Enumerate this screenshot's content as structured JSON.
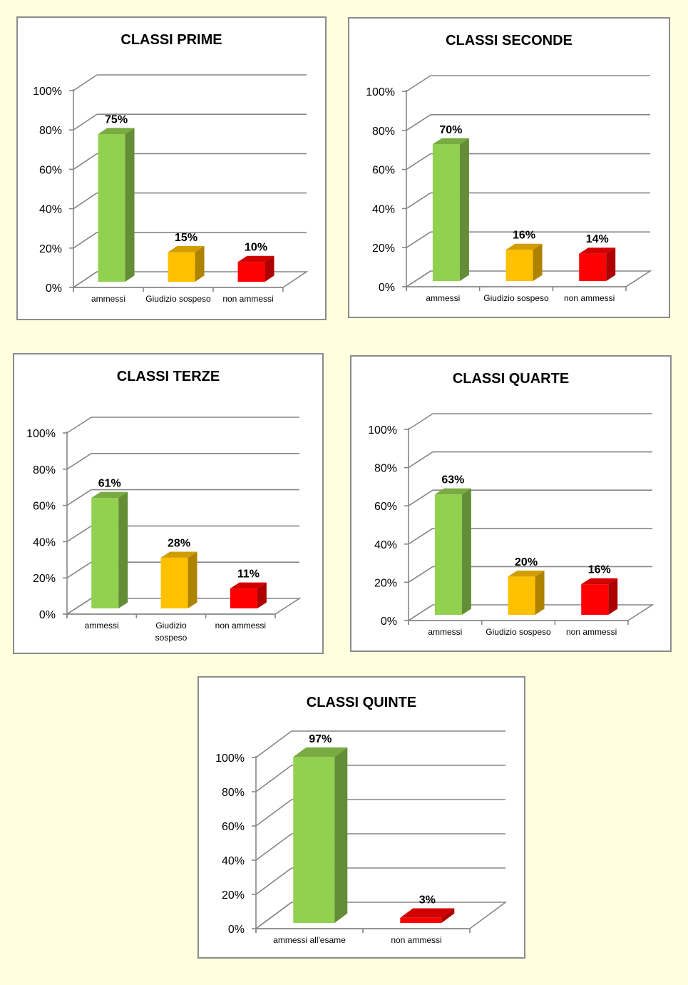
{
  "chart_data": [
    {
      "type": "bar",
      "title": "CLASSI PRIME",
      "categories": [
        "ammessi",
        "Giudizio sospeso",
        "non ammessi"
      ],
      "values": [
        75,
        15,
        10
      ],
      "data_labels": [
        "75%",
        "15%",
        "10%"
      ],
      "ylim": [
        0,
        100
      ],
      "yticks": [
        "0%",
        "20%",
        "40%",
        "60%",
        "80%",
        "100%"
      ],
      "colors": [
        "#92d050",
        "#ffc000",
        "#ff0000"
      ]
    },
    {
      "type": "bar",
      "title": "CLASSI SECONDE",
      "categories": [
        "ammessi",
        "Giudizio sospeso",
        "non ammessi"
      ],
      "values": [
        70,
        16,
        14
      ],
      "data_labels": [
        "70%",
        "16%",
        "14%"
      ],
      "ylim": [
        0,
        100
      ],
      "yticks": [
        "0%",
        "20%",
        "40%",
        "60%",
        "80%",
        "100%"
      ],
      "colors": [
        "#92d050",
        "#ffc000",
        "#ff0000"
      ]
    },
    {
      "type": "bar",
      "title": "CLASSI TERZE",
      "categories": [
        "ammessi",
        "Giudizio sospeso",
        "non ammessi"
      ],
      "values": [
        61,
        28,
        11
      ],
      "data_labels": [
        "61%",
        "28%",
        "11%"
      ],
      "ylim": [
        0,
        100
      ],
      "yticks": [
        "0%",
        "20%",
        "40%",
        "60%",
        "80%",
        "100%"
      ],
      "colors": [
        "#92d050",
        "#ffc000",
        "#ff0000"
      ]
    },
    {
      "type": "bar",
      "title": "CLASSI QUARTE",
      "categories": [
        "ammessi",
        "Giudizio sospeso",
        "non ammessi"
      ],
      "values": [
        63,
        20,
        16
      ],
      "data_labels": [
        "63%",
        "20%",
        "16%"
      ],
      "ylim": [
        0,
        100
      ],
      "yticks": [
        "0%",
        "20%",
        "40%",
        "60%",
        "80%",
        "100%"
      ],
      "colors": [
        "#92d050",
        "#ffc000",
        "#ff0000"
      ]
    },
    {
      "type": "bar",
      "title": "CLASSI QUINTE",
      "categories": [
        "ammessi all'esame",
        "non ammessi"
      ],
      "values": [
        97,
        3
      ],
      "data_labels": [
        "97%",
        "3%"
      ],
      "ylim": [
        0,
        100
      ],
      "yticks": [
        "0%",
        "20%",
        "40%",
        "60%",
        "80%",
        "100%"
      ],
      "colors": [
        "#92d050",
        "#ff0000"
      ]
    }
  ]
}
